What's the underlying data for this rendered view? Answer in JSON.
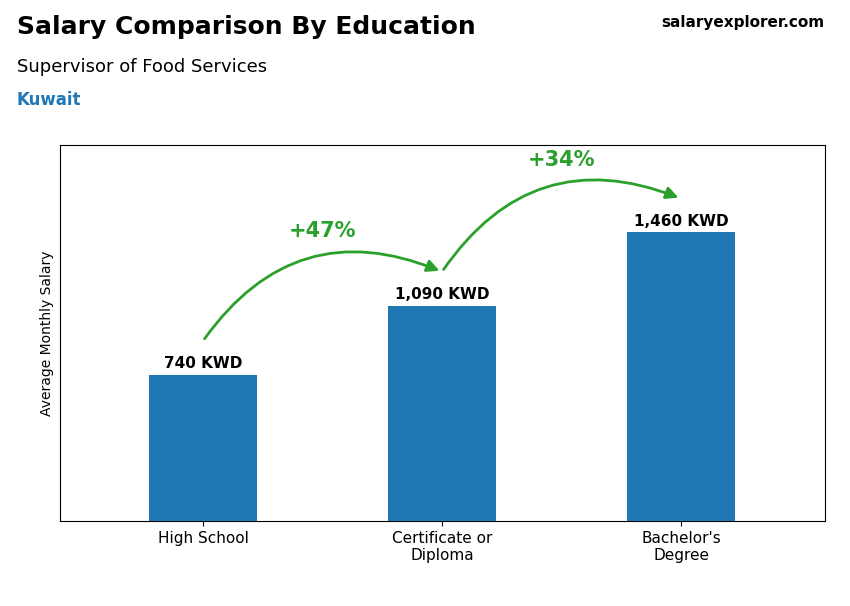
{
  "chart_data": {
    "type": "bar",
    "title": "Salary Comparison By Education",
    "subtitle": "Supervisor of Food Services",
    "annotations": [
      "Kuwait",
      "salaryexplorer.com"
    ],
    "ylabel": "Average Monthly Salary",
    "categories": [
      "High School",
      "Certificate or\nDiploma",
      "Bachelor's\nDegree"
    ],
    "values": [
      740,
      1090,
      1460
    ],
    "value_labels": [
      "740 KWD",
      "1,090 KWD",
      "1,460 KWD"
    ],
    "data_labels": true,
    "change_labels": [
      "+47%",
      "+34%"
    ],
    "ylim": [
      0,
      1900
    ],
    "yticks": [],
    "tick_labels": "x",
    "grid": false
  }
}
